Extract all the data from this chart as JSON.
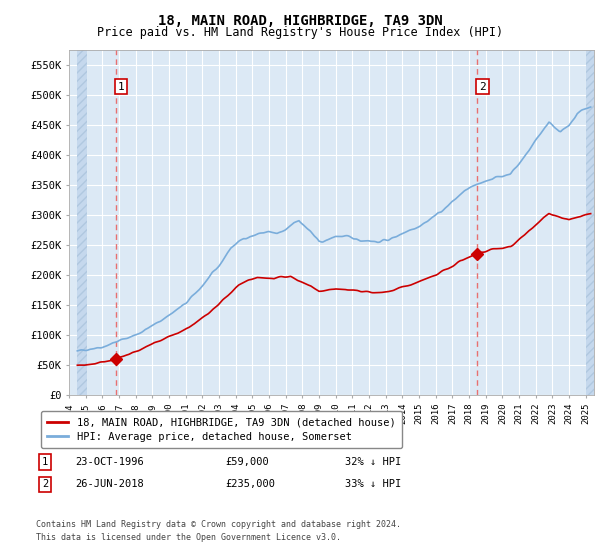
{
  "title": "18, MAIN ROAD, HIGHBRIDGE, TA9 3DN",
  "subtitle": "Price paid vs. HM Land Registry's House Price Index (HPI)",
  "ylim": [
    0,
    575000
  ],
  "yticks": [
    0,
    50000,
    100000,
    150000,
    200000,
    250000,
    300000,
    350000,
    400000,
    450000,
    500000,
    550000
  ],
  "ytick_labels": [
    "£0",
    "£50K",
    "£100K",
    "£150K",
    "£200K",
    "£250K",
    "£300K",
    "£350K",
    "£400K",
    "£450K",
    "£500K",
    "£550K"
  ],
  "xlim_start": 1994.5,
  "xlim_end": 2025.5,
  "bg_color": "#dce9f5",
  "hatch_color": "#c5d8ed",
  "grid_color": "#ffffff",
  "sale1_x": 1996.81,
  "sale1_y": 59000,
  "sale1_label": "1",
  "sale1_date": "23-OCT-1996",
  "sale1_price": "£59,000",
  "sale1_note": "32% ↓ HPI",
  "sale2_x": 2018.48,
  "sale2_y": 235000,
  "sale2_label": "2",
  "sale2_date": "26-JUN-2018",
  "sale2_price": "£235,000",
  "sale2_note": "33% ↓ HPI",
  "line_color_red": "#cc0000",
  "line_color_blue": "#7aaddb",
  "vline_color": "#e87070",
  "legend_label_red": "18, MAIN ROAD, HIGHBRIDGE, TA9 3DN (detached house)",
  "legend_label_blue": "HPI: Average price, detached house, Somerset",
  "footer": "Contains HM Land Registry data © Crown copyright and database right 2024.\nThis data is licensed under the Open Government Licence v3.0.",
  "xtick_years": [
    1994,
    1995,
    1996,
    1997,
    1998,
    1999,
    2000,
    2001,
    2002,
    2003,
    2004,
    2005,
    2006,
    2007,
    2008,
    2009,
    2010,
    2011,
    2012,
    2013,
    2014,
    2015,
    2016,
    2017,
    2018,
    2019,
    2020,
    2021,
    2022,
    2023,
    2024,
    2025
  ]
}
